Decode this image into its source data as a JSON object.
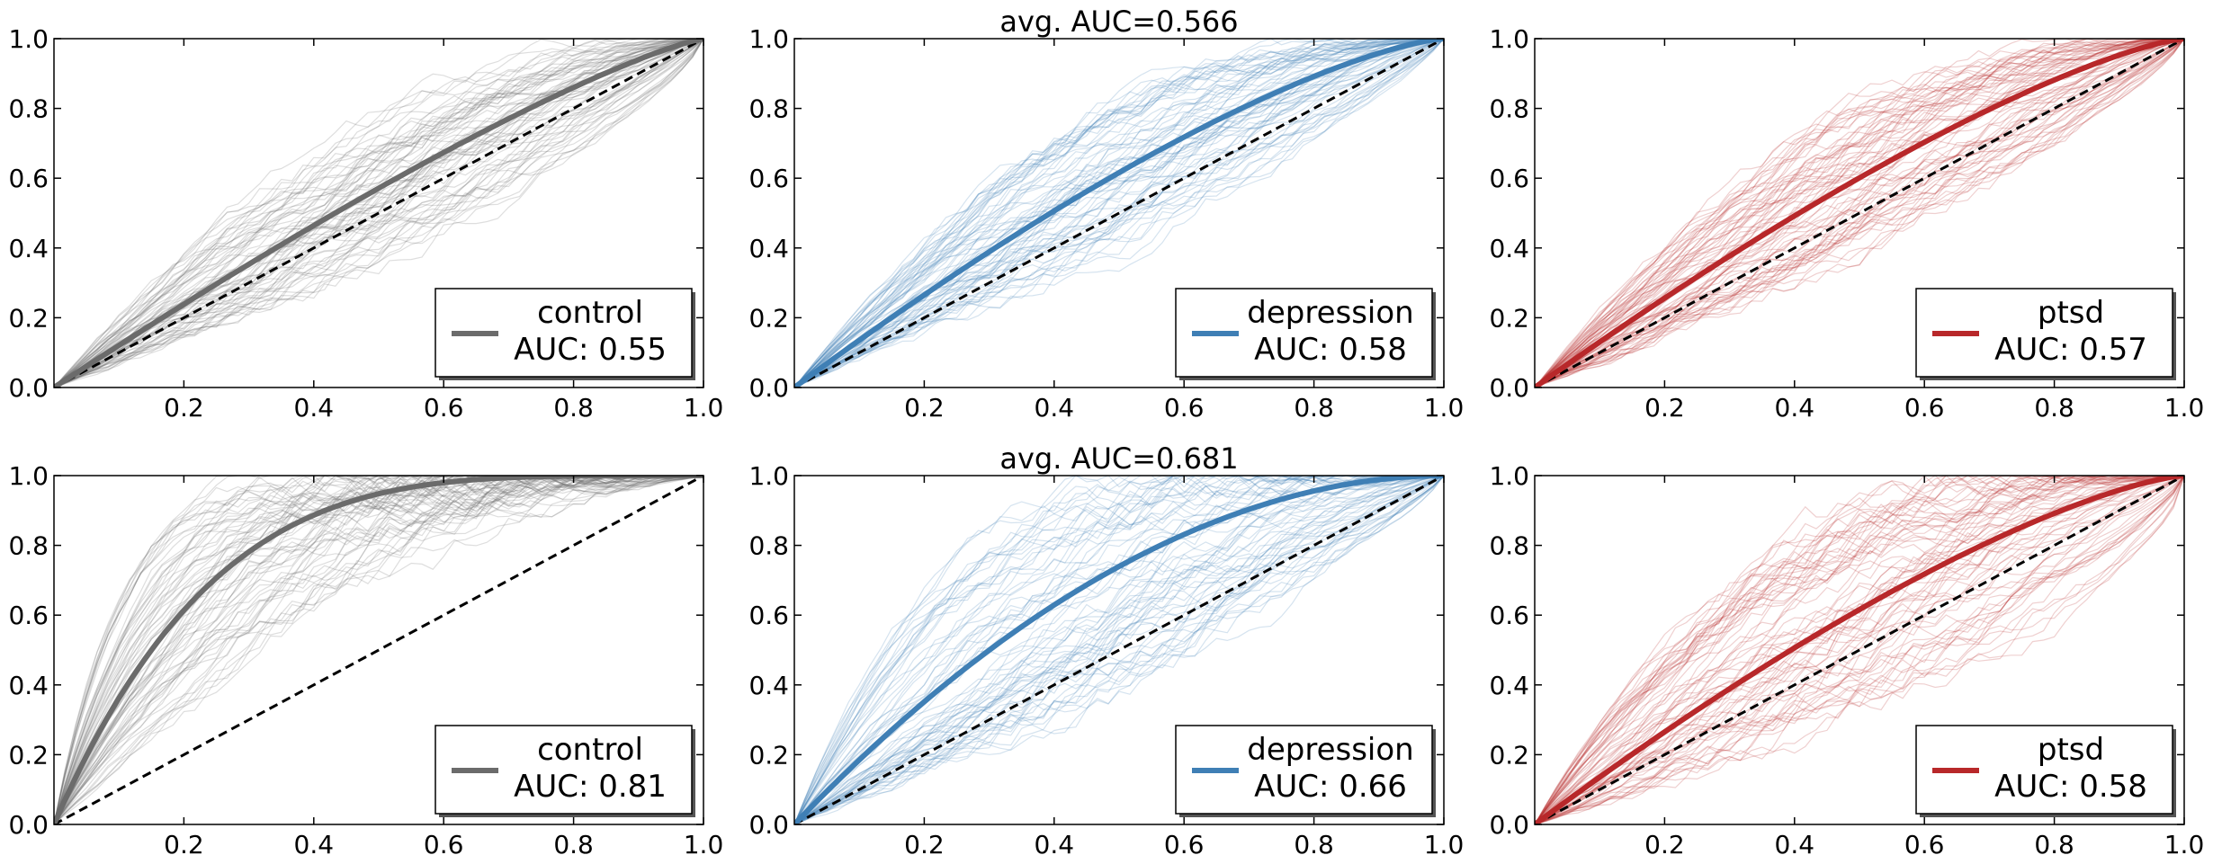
{
  "chart_data": [
    {
      "type": "line",
      "rows": [
        {
          "title": "avg. AUC=0.566",
          "panels": [
            {
              "name": "control",
              "auc_text": "AUC: 0.55",
              "auc": 0.55,
              "color": "#6b6b6b"
            },
            {
              "name": "depression",
              "auc_text": "AUC: 0.58",
              "auc": 0.58,
              "color": "#3f7fb5"
            },
            {
              "name": "ptsd",
              "auc_text": "AUC: 0.57",
              "auc": 0.57,
              "color": "#b8282a"
            }
          ]
        },
        {
          "title": "avg. AUC=0.681",
          "panels": [
            {
              "name": "control",
              "auc_text": "AUC: 0.81",
              "auc": 0.81,
              "color": "#6b6b6b"
            },
            {
              "name": "depression",
              "auc_text": "AUC: 0.66",
              "auc": 0.66,
              "color": "#3f7fb5"
            },
            {
              "name": "ptsd",
              "auc_text": "AUC: 0.58",
              "auc": 0.58,
              "color": "#b8282a"
            }
          ]
        }
      ],
      "xlim": [
        0.0,
        1.0
      ],
      "ylim": [
        0.0,
        1.0
      ],
      "xticks": [
        "0.2",
        "0.4",
        "0.6",
        "0.8",
        "1.0"
      ],
      "yticks": [
        "0.0",
        "0.2",
        "0.4",
        "0.6",
        "0.8",
        "1.0"
      ],
      "diagonal": {
        "x": [
          0,
          1
        ],
        "y": [
          0,
          1
        ],
        "style": "dashed",
        "color": "#000000"
      },
      "legend_placement": "lower-right",
      "grid": false
    }
  ]
}
